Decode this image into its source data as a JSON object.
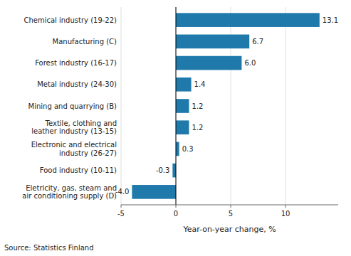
{
  "chart_data": {
    "type": "bar",
    "orientation": "horizontal",
    "categories": [
      "Eletricity, gas, steam and\nair conditioning supply (D)",
      "Food industry (10-11)",
      "Electronic and electrical\nindustry (26-27)",
      "Textile, clothing and\nleather industry (13-15)",
      "Mining and quarrying (B)",
      "Metal industry (24-30)",
      "Forest industry (16-17)",
      "Manufacturing (C)",
      "Chemical industry (19-22)"
    ],
    "values": [
      -4.0,
      -0.3,
      0.3,
      1.2,
      1.2,
      1.4,
      6.0,
      6.7,
      13.1
    ],
    "value_labels": [
      "-4.0",
      "-0.3",
      "0.3",
      "1.2",
      "1.2",
      "1.4",
      "6.0",
      "6.7",
      "13.1"
    ],
    "data_labels": true,
    "color": "#1f7aab",
    "xlabel": "Year-on-year change, %",
    "xlim": [
      -5,
      14.8
    ],
    "xticks": [
      -5,
      0,
      5,
      10
    ],
    "grid": true,
    "annotations": [
      "Source: Statistics Finland"
    ]
  }
}
